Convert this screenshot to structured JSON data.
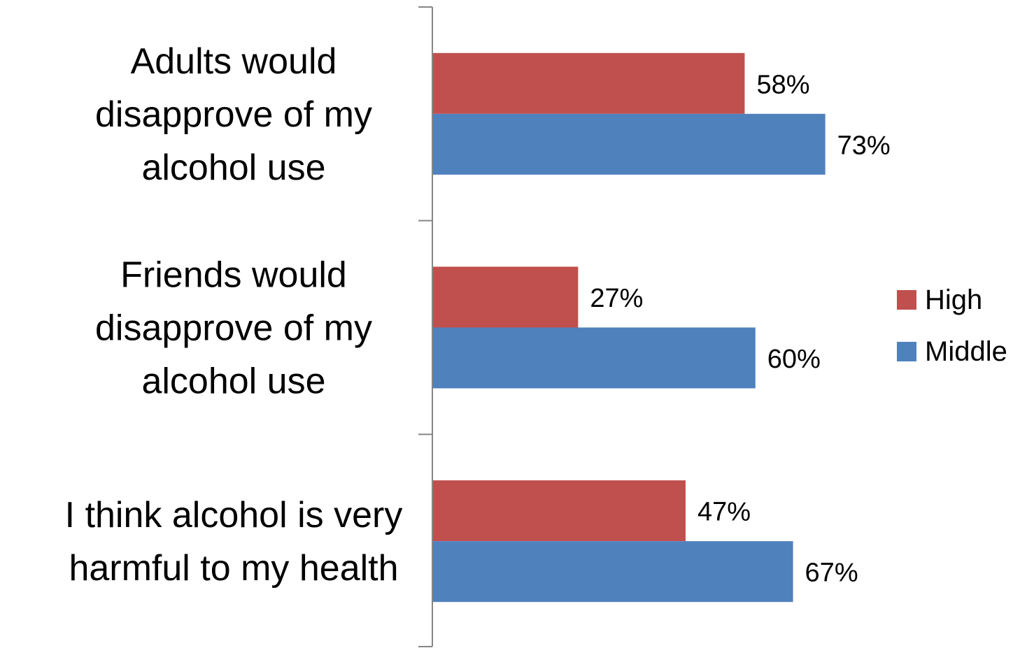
{
  "chart_data": {
    "type": "bar",
    "orientation": "horizontal",
    "categories": [
      "Adults would disapprove of my alcohol use",
      "Friends would disapprove of my alcohol use",
      "I think alcohol is very harmful to my health"
    ],
    "category_lines": [
      [
        "Adults would",
        "disapprove of my",
        "alcohol use"
      ],
      [
        "Friends would",
        "disapprove of my",
        "alcohol use"
      ],
      [
        "I think alcohol is very",
        "harmful to my health"
      ]
    ],
    "series": [
      {
        "name": "High",
        "color": "#c0504d",
        "values": [
          58,
          27,
          47
        ],
        "labels": [
          "58%",
          "27%",
          "47%"
        ]
      },
      {
        "name": "Middle",
        "color": "#4f81bd",
        "values": [
          73,
          60,
          67
        ],
        "labels": [
          "73%",
          "60%",
          "67%"
        ]
      }
    ],
    "xlim": [
      0,
      100
    ],
    "value_unit": "%",
    "grid": false,
    "legend_position": "right",
    "title": "",
    "xlabel": "",
    "ylabel": ""
  }
}
